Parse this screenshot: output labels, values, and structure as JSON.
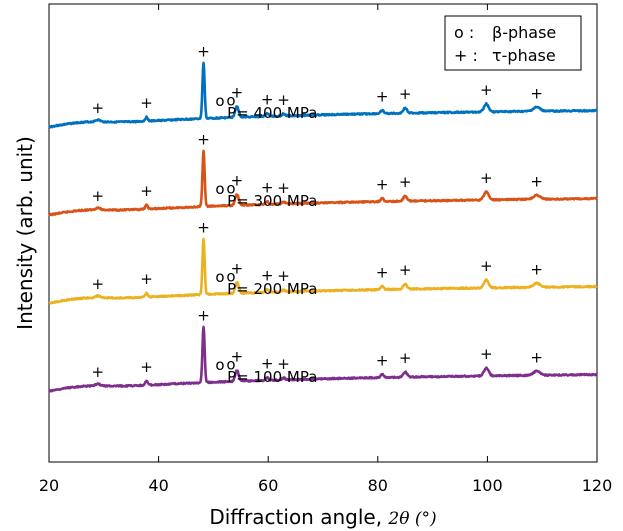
{
  "chart_data": {
    "type": "line",
    "xlabel_main": "Diffraction angle,",
    "xlabel_math": "2θ (°)",
    "ylabel": "Intensity (arb. unit)",
    "xlim": [
      20,
      120
    ],
    "xticks": [
      "20",
      "40",
      "60",
      "80",
      "100",
      "120"
    ],
    "y_ticks_visible": false,
    "grid": false,
    "legend": {
      "position": "top-right",
      "entries": [
        {
          "symbol": "o :",
          "label": "β-phase"
        },
        {
          "symbol": "+ :",
          "label": "τ-phase"
        }
      ]
    },
    "peaks": {
      "tau_positions": [
        28.9,
        37.8,
        48.2,
        54.3,
        59.8,
        62.8,
        80.8,
        85.0,
        99.8,
        109.0
      ],
      "tau_main_peak": 48.2,
      "beta_positions": [
        51.2,
        53.2
      ]
    },
    "series": [
      {
        "label": "P= 400 MPa",
        "color": "#0072BD",
        "offset": 3
      },
      {
        "label": "P= 300 MPa",
        "color": "#D95319",
        "offset": 2
      },
      {
        "label": "P= 200 MPa",
        "color": "#EDB120",
        "offset": 1
      },
      {
        "label": "P= 100 MPa",
        "color": "#7E2F8E",
        "offset": 0
      }
    ]
  }
}
